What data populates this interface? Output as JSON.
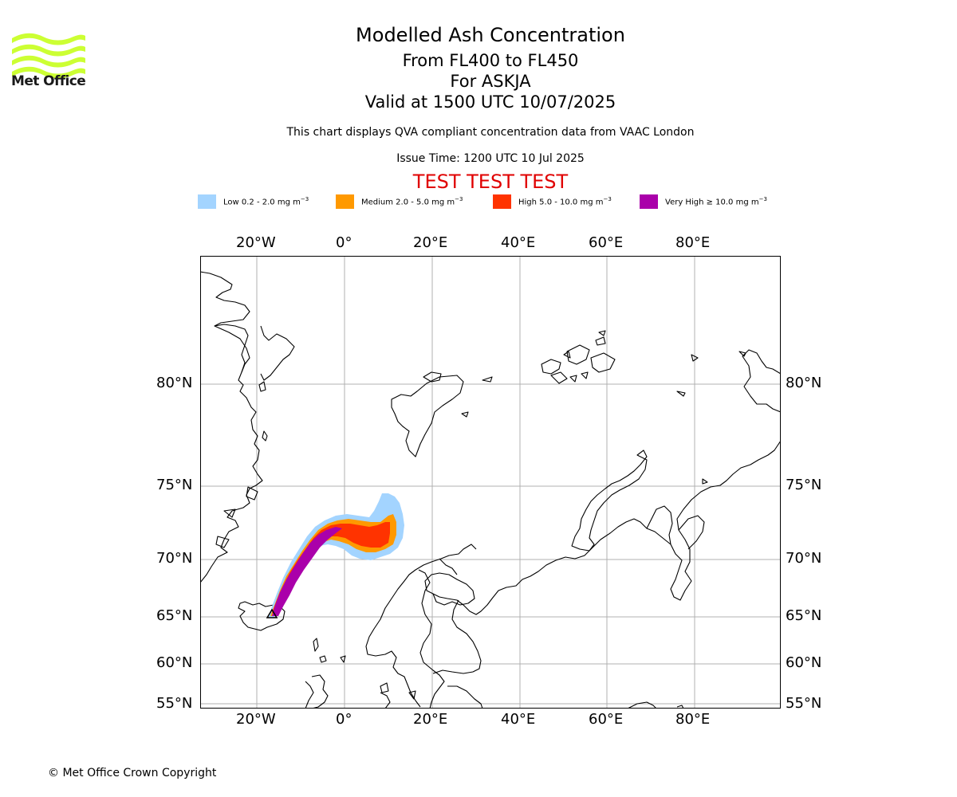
{
  "logo": {
    "text": "Met Office",
    "wave_color": "#ccff33"
  },
  "header": {
    "title": "Modelled Ash Concentration",
    "flight_levels": "From FL400 to FL450",
    "volcano": "For ASKJA",
    "valid_time": "Valid at 1500 UTC 10/07/2025",
    "description": "This chart displays QVA compliant concentration data from VAAC London",
    "issue_time": "Issue Time: 1200 UTC 10 Jul 2025",
    "test_banner": "TEST TEST TEST"
  },
  "legend": [
    {
      "name": "Low",
      "label": "Low 0.2 - 2.0 mg m",
      "color": "#a3d4ff"
    },
    {
      "name": "Medium",
      "label": "Medium 2.0 - 5.0 mg m",
      "color": "#ff9900"
    },
    {
      "name": "High",
      "label": "High 5.0 - 10.0 mg m",
      "color": "#ff3300"
    },
    {
      "name": "Very High",
      "label": "Very High ≥ 10.0 mg m",
      "color": "#aa00aa"
    }
  ],
  "legend_unit_exponent": "−3",
  "map": {
    "lon_ticks": [
      "20°W",
      "0°",
      "20°E",
      "40°E",
      "60°E",
      "80°E"
    ],
    "lat_ticks": [
      "80°N",
      "75°N",
      "70°N",
      "65°N",
      "60°N",
      "55°N"
    ],
    "gridlines": true,
    "coastline_color": "#000000",
    "gridline_color": "#b0b0b0"
  },
  "footer": {
    "copyright": "© Met Office Crown Copyright"
  }
}
